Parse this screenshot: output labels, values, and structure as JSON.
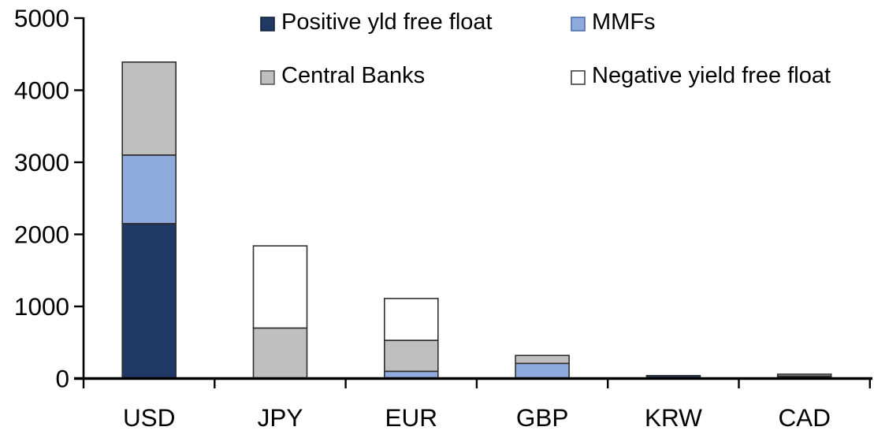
{
  "chart_data": {
    "type": "bar",
    "stacked": true,
    "title": "",
    "xlabel": "",
    "ylabel": "",
    "categories": [
      "USD",
      "JPY",
      "EUR",
      "GBP",
      "KRW",
      "CAD"
    ],
    "series": [
      {
        "name": "Positive yld free float",
        "color": "#1F3864",
        "border": "#16233C",
        "values": [
          2150,
          0,
          0,
          0,
          40,
          20
        ]
      },
      {
        "name": "MMFs",
        "color": "#8FAADC",
        "border": "#4C6FAF",
        "values": [
          950,
          0,
          100,
          210,
          0,
          15
        ]
      },
      {
        "name": "Central Banks",
        "color": "#BFBFBF",
        "border": "#595959",
        "values": [
          1290,
          700,
          430,
          110,
          0,
          25
        ]
      },
      {
        "name": "Negative yield free float",
        "color": "#FFFFFF",
        "border": "#404040",
        "values": [
          0,
          1140,
          580,
          0,
          0,
          0
        ]
      }
    ],
    "ylim": [
      0,
      5000
    ],
    "yticks": [
      0,
      1000,
      2000,
      3000,
      4000,
      5000
    ],
    "grid": false,
    "legend_position": "top-two-columns",
    "legend_order": [
      {
        "series_index": 0,
        "row": 0,
        "col": 0
      },
      {
        "series_index": 1,
        "row": 0,
        "col": 1
      },
      {
        "series_index": 2,
        "row": 1,
        "col": 0
      },
      {
        "series_index": 3,
        "row": 1,
        "col": 1
      }
    ],
    "axis_color": "#000000",
    "background_color": "#FFFFFF"
  }
}
